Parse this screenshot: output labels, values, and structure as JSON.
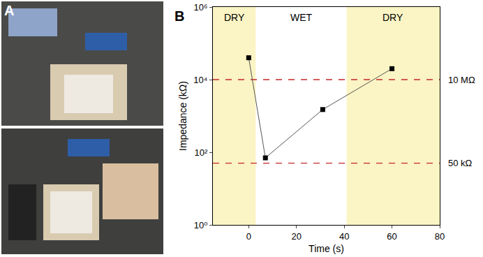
{
  "panel_labels": [
    "A",
    "B"
  ],
  "chart_data": {
    "type": "line",
    "x_label": "Time (s)",
    "y_label": "Impedance (kΩ)",
    "x": [
      0,
      7,
      31,
      60
    ],
    "values": [
      40000,
      70,
      1500,
      20000
    ],
    "color": "#000000",
    "marker": "square",
    "line_style": "solid",
    "log": "y",
    "grid": false,
    "xlim": [
      -15,
      80
    ],
    "xticks": [
      0,
      20,
      40,
      60,
      80
    ],
    "ylim": [
      1,
      1000000
    ],
    "yticks": [
      {
        "value": 1,
        "label": "10⁰"
      },
      {
        "value": 100,
        "label": "10²"
      },
      {
        "value": 10000,
        "label": "10⁴"
      },
      {
        "value": 1000000,
        "label": "10⁶"
      }
    ],
    "reference_lines": [
      {
        "value": 10000,
        "label": "10 MΩ",
        "color": "#c62828",
        "line_style": "dash"
      },
      {
        "value": 50,
        "label": "50 kΩ",
        "color": "#c62828",
        "line_style": "dash"
      }
    ],
    "regions": [
      {
        "label": "DRY",
        "x0": -15,
        "x1": 3,
        "color": "#fbf4c4"
      },
      {
        "label": "WET",
        "x0": 3,
        "x1": 41,
        "color": "#ffffff"
      },
      {
        "label": "DRY",
        "x0": 41,
        "x1": 80,
        "color": "#fbf4c4"
      }
    ]
  }
}
